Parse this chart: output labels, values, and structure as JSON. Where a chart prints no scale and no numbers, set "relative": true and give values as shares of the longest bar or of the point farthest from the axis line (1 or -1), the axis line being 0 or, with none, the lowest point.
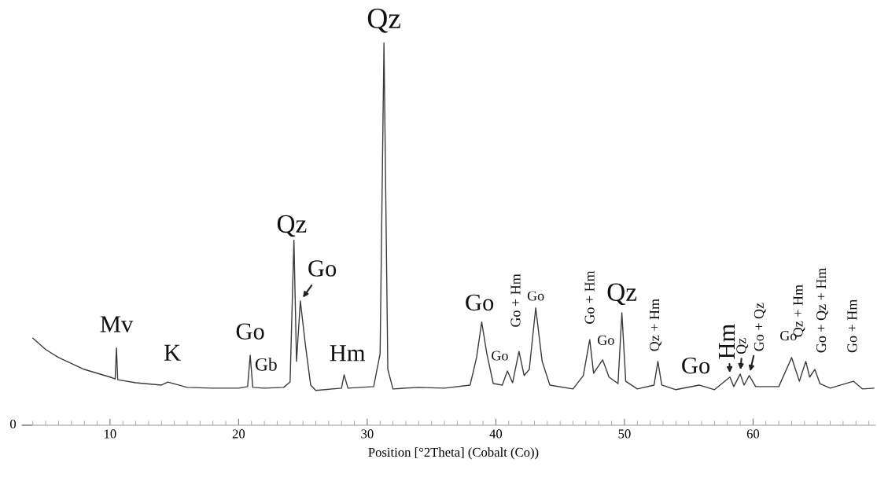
{
  "chart_data": {
    "type": "line",
    "relative": true,
    "xlabel": "Position [°2Theta] (Cobalt (Co))",
    "xlim": [
      3.9,
      69.5
    ],
    "xticks": [
      10,
      20,
      30,
      40,
      50,
      60
    ],
    "grid": false,
    "marker": "none",
    "line_style": "solid",
    "series": [
      {
        "color": "#3a3a3a",
        "x": [
          4.0,
          5,
          6,
          8,
          10,
          10.4,
          10.5,
          10.6,
          12,
          14,
          14.5,
          16,
          18,
          20,
          20.7,
          20.9,
          21.1,
          22,
          23.5,
          24.0,
          24.3,
          24.5,
          24.8,
          25.2,
          25.6,
          26,
          28,
          28.2,
          28.5,
          30.5,
          31.0,
          31.3,
          31.6,
          32,
          34,
          36,
          38,
          38.5,
          38.9,
          39.3,
          39.8,
          40.5,
          40.9,
          41.3,
          41.8,
          42.2,
          42.6,
          43.1,
          43.6,
          44.2,
          46,
          46.8,
          47.3,
          47.6,
          48.3,
          48.8,
          49.5,
          49.8,
          50.1,
          51,
          52.3,
          52.6,
          52.9,
          54,
          55.8,
          57,
          58.2,
          58.5,
          59.0,
          59.3,
          59.7,
          60.2,
          62,
          63.0,
          63.6,
          64.1,
          64.4,
          64.8,
          65.2,
          66,
          67.8,
          68.5,
          69.4
        ],
        "values": [
          0.228,
          0.198,
          0.177,
          0.146,
          0.126,
          0.121,
          0.202,
          0.119,
          0.111,
          0.105,
          0.113,
          0.099,
          0.097,
          0.097,
          0.101,
          0.183,
          0.099,
          0.097,
          0.099,
          0.113,
          0.484,
          0.167,
          0.325,
          0.208,
          0.105,
          0.091,
          0.097,
          0.132,
          0.097,
          0.101,
          0.187,
          1,
          0.146,
          0.095,
          0.099,
          0.097,
          0.105,
          0.177,
          0.27,
          0.187,
          0.109,
          0.105,
          0.142,
          0.111,
          0.193,
          0.13,
          0.146,
          0.307,
          0.167,
          0.105,
          0.095,
          0.13,
          0.224,
          0.136,
          0.171,
          0.126,
          0.109,
          0.294,
          0.115,
          0.095,
          0.105,
          0.167,
          0.105,
          0.093,
          0.105,
          0.093,
          0.126,
          0.101,
          0.134,
          0.105,
          0.13,
          0.101,
          0.101,
          0.177,
          0.115,
          0.167,
          0.126,
          0.146,
          0.109,
          0.097,
          0.115,
          0.095,
          0.097
        ]
      }
    ],
    "annotations": [
      {
        "text": "Mv",
        "x": 10.5,
        "y": 0.202
      },
      {
        "text": "K",
        "x": 14.5,
        "y": 0.113
      },
      {
        "text": "Go",
        "x": 20.9,
        "y": 0.183
      },
      {
        "text": "Gb",
        "x": 21.2,
        "y": 0.104
      },
      {
        "text": "Qz",
        "x": 24.3,
        "y": 0.484
      },
      {
        "text": "Go",
        "x": 24.8,
        "y": 0.325
      },
      {
        "text": "Hm",
        "x": 28.2,
        "y": 0.132
      },
      {
        "text": "Qz",
        "x": 31.3,
        "y": 1
      },
      {
        "text": "Go",
        "x": 38.9,
        "y": 0.27
      },
      {
        "text": "Go",
        "x": 40.9,
        "y": 0.142
      },
      {
        "text": "Go + Hm",
        "x": 41.8,
        "y": 0.193
      },
      {
        "text": "Go",
        "x": 43.1,
        "y": 0.307
      },
      {
        "text": "Go + Hm",
        "x": 47.3,
        "y": 0.224
      },
      {
        "text": "Go",
        "x": 48.3,
        "y": 0.171
      },
      {
        "text": "Qz",
        "x": 49.8,
        "y": 0.294
      },
      {
        "text": "Qz + Hm",
        "x": 52.6,
        "y": 0.167
      },
      {
        "text": "Go",
        "x": 55.8,
        "y": 0.105
      },
      {
        "text": "Hm",
        "x": 58.2,
        "y": 0.126
      },
      {
        "text": "Qz",
        "x": 59.0,
        "y": 0.134
      },
      {
        "text": "Go + Qz",
        "x": 59.7,
        "y": 0.13
      },
      {
        "text": "Go",
        "x": 63.0,
        "y": 0.177
      },
      {
        "text": "Qz + Hm",
        "x": 64.1,
        "y": 0.167
      },
      {
        "text": "Go + Qz + Hm",
        "x": 64.8,
        "y": 0.146
      },
      {
        "text": "Go + Hm",
        "x": 67.8,
        "y": 0.115
      },
      "0"
    ]
  }
}
